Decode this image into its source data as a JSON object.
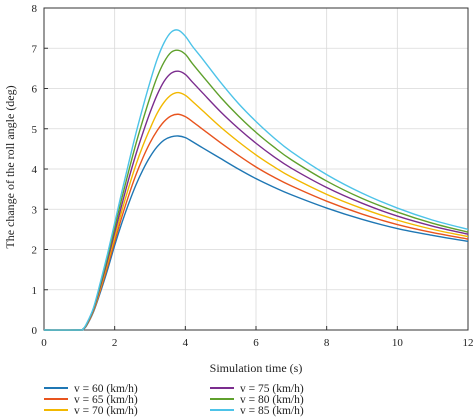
{
  "chart_data": {
    "type": "line",
    "title": "",
    "xlabel": "Simulation time (s)",
    "ylabel": "The change of the roll angle (deg)",
    "xlim": [
      0,
      12
    ],
    "ylim": [
      0,
      8
    ],
    "xticks": [
      "0",
      "2",
      "4",
      "6",
      "8",
      "10",
      "12"
    ],
    "yticks": [
      "0",
      "1",
      "2",
      "3",
      "4",
      "5",
      "6",
      "7",
      "8"
    ],
    "grid": true,
    "legend_position": "bottom",
    "x": [
      0,
      1.0,
      1.1,
      1.2,
      1.4,
      1.6,
      1.8,
      2.0,
      2.2,
      2.4,
      2.6,
      2.8,
      3.0,
      3.2,
      3.4,
      3.6,
      3.8,
      4.0,
      4.2,
      4.5,
      5.0,
      5.5,
      6.0,
      6.5,
      7.0,
      8.0,
      9.0,
      10.0,
      11.0,
      12.0
    ],
    "series": [
      {
        "name": "v = 60 (km/h)",
        "color": "#1f77b4",
        "values": [
          0,
          0,
          0.02,
          0.1,
          0.45,
          0.95,
          1.5,
          2.1,
          2.65,
          3.15,
          3.6,
          3.98,
          4.3,
          4.55,
          4.72,
          4.8,
          4.82,
          4.78,
          4.68,
          4.52,
          4.26,
          4.0,
          3.76,
          3.55,
          3.36,
          3.03,
          2.75,
          2.52,
          2.35,
          2.2
        ]
      },
      {
        "name": "v = 65 (km/h)",
        "color": "#e8541e",
        "values": [
          0,
          0,
          0.02,
          0.11,
          0.47,
          1.0,
          1.58,
          2.2,
          2.8,
          3.35,
          3.85,
          4.28,
          4.65,
          4.95,
          5.18,
          5.32,
          5.36,
          5.3,
          5.18,
          4.98,
          4.65,
          4.34,
          4.05,
          3.8,
          3.58,
          3.2,
          2.88,
          2.62,
          2.42,
          2.26
        ]
      },
      {
        "name": "v = 70 (km/h)",
        "color": "#f2b800",
        "values": [
          0,
          0,
          0.02,
          0.12,
          0.49,
          1.05,
          1.66,
          2.3,
          2.95,
          3.55,
          4.1,
          4.58,
          5.0,
          5.38,
          5.66,
          5.84,
          5.9,
          5.83,
          5.68,
          5.44,
          5.04,
          4.68,
          4.35,
          4.06,
          3.8,
          3.37,
          3.02,
          2.73,
          2.5,
          2.32
        ]
      },
      {
        "name": "v = 75 (km/h)",
        "color": "#7b2d8e",
        "values": [
          0,
          0,
          0.02,
          0.13,
          0.51,
          1.1,
          1.74,
          2.42,
          3.1,
          3.76,
          4.36,
          4.9,
          5.4,
          5.84,
          6.18,
          6.38,
          6.43,
          6.35,
          6.16,
          5.88,
          5.42,
          5.01,
          4.64,
          4.31,
          4.02,
          3.54,
          3.15,
          2.83,
          2.58,
          2.38
        ]
      },
      {
        "name": "v = 80 (km/h)",
        "color": "#5fa02c",
        "values": [
          0,
          0,
          0.02,
          0.14,
          0.53,
          1.15,
          1.82,
          2.54,
          3.26,
          3.96,
          4.62,
          5.22,
          5.78,
          6.28,
          6.66,
          6.9,
          6.95,
          6.85,
          6.62,
          6.3,
          5.78,
          5.32,
          4.91,
          4.55,
          4.23,
          3.7,
          3.27,
          2.93,
          2.65,
          2.43
        ]
      },
      {
        "name": "v = 85 (km/h)",
        "color": "#4dc3e8",
        "values": [
          0,
          0,
          0.02,
          0.15,
          0.55,
          1.2,
          1.9,
          2.66,
          3.42,
          4.16,
          4.88,
          5.54,
          6.16,
          6.72,
          7.14,
          7.4,
          7.45,
          7.3,
          7.05,
          6.72,
          6.15,
          5.63,
          5.18,
          4.78,
          4.43,
          3.86,
          3.4,
          3.03,
          2.73,
          2.5
        ]
      }
    ]
  }
}
